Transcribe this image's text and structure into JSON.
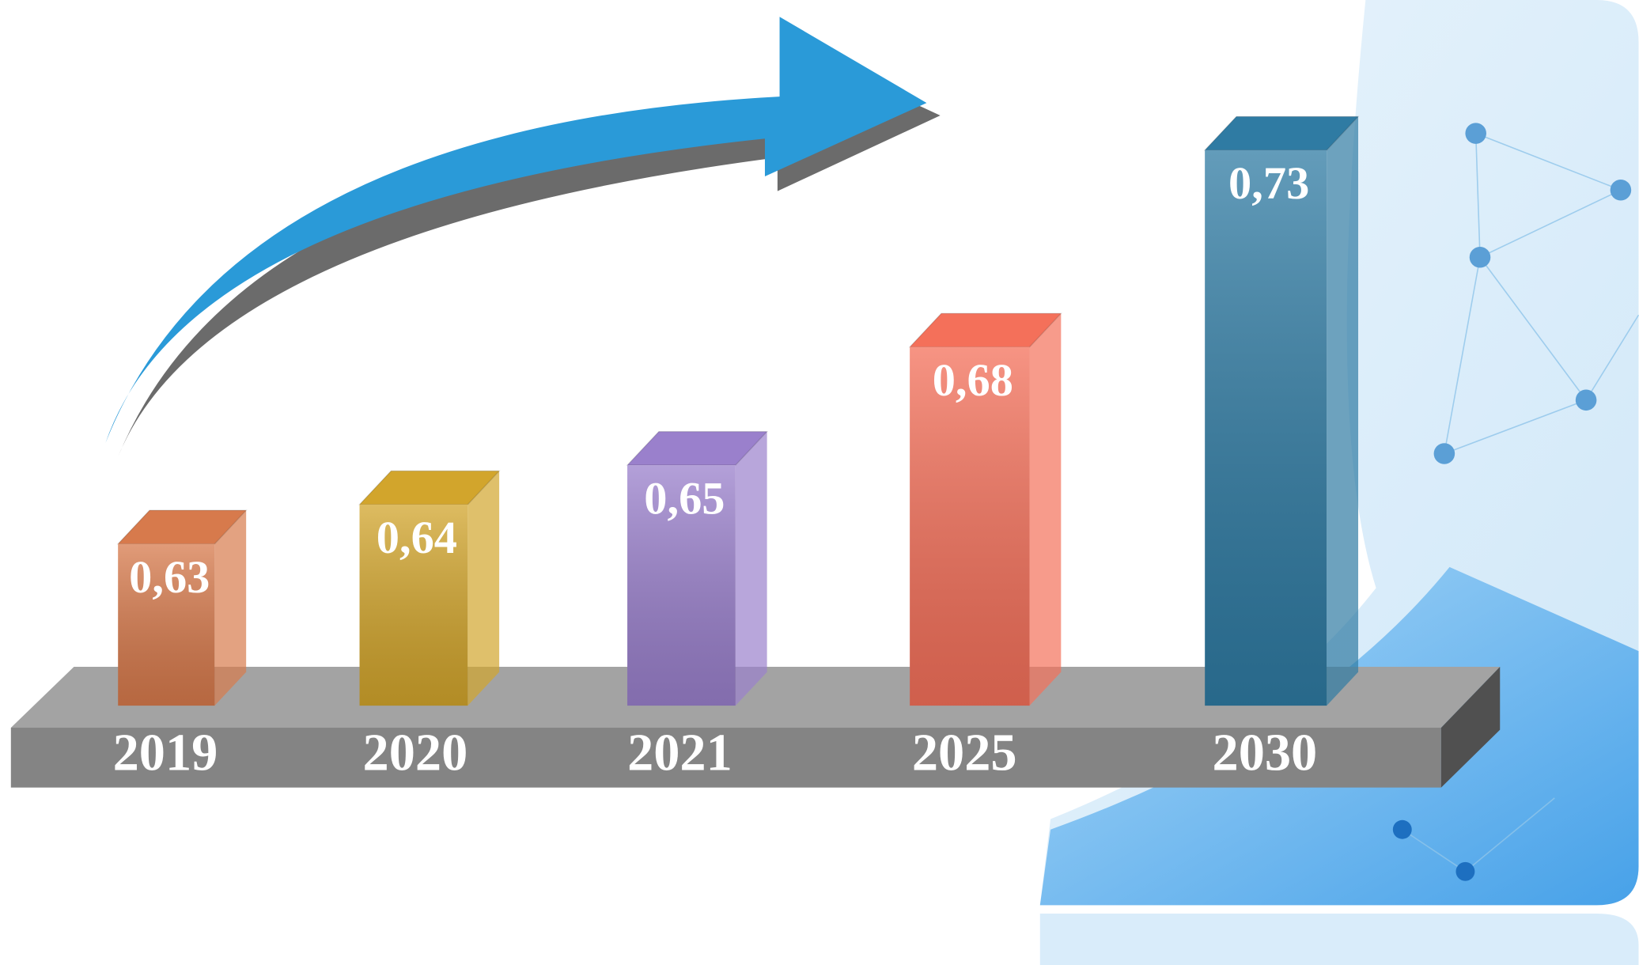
{
  "chart_data": {
    "type": "bar3d",
    "categories": [
      "2019",
      "2020",
      "2021",
      "2025",
      "2030"
    ],
    "values": [
      0.63,
      0.64,
      0.65,
      0.68,
      0.73
    ],
    "value_labels": [
      "0,63",
      "0,64",
      "0,65",
      "0,68",
      "0,73"
    ],
    "colors": [
      "#d77a4c",
      "#d2a52c",
      "#9a80cc",
      "#f4705a",
      "#2f7ba3"
    ]
  }
}
